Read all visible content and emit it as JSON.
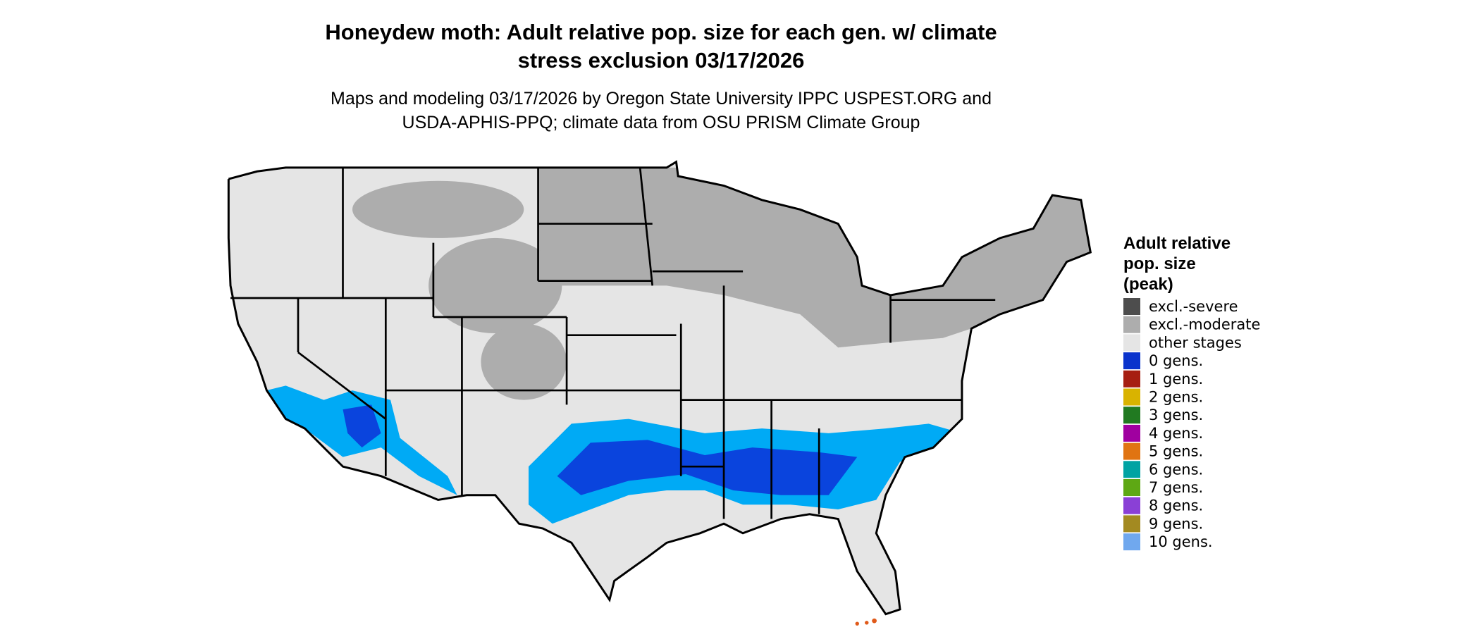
{
  "header": {
    "title_lines": [
      "Honeydew moth: Adult relative pop. size for each gen. w/ climate",
      "stress exclusion 03/17/2026"
    ],
    "subtitle_lines": [
      "Maps and modeling 03/17/2026 by Oregon State University IPPC USPEST.ORG and",
      "USDA-APHIS-PPQ; climate data from OSU PRISM Climate Group"
    ]
  },
  "legend": {
    "title_lines": [
      "Adult relative",
      "pop. size",
      "(peak)"
    ],
    "items": [
      {
        "label": "excl.-severe",
        "color": "#4d4d4d"
      },
      {
        "label": "excl.-moderate",
        "color": "#adadad"
      },
      {
        "label": "other stages",
        "color": "#e5e5e5"
      },
      {
        "label": "0 gens.",
        "color": "#0a33cc"
      },
      {
        "label": "1 gens.",
        "color": "#a61e12"
      },
      {
        "label": "2 gens.",
        "color": "#d9b300"
      },
      {
        "label": "3 gens.",
        "color": "#217a21"
      },
      {
        "label": "4 gens.",
        "color": "#a000a0"
      },
      {
        "label": "5 gens.",
        "color": "#e07412"
      },
      {
        "label": "6 gens.",
        "color": "#00a3a3"
      },
      {
        "label": "7 gens.",
        "color": "#5ea814"
      },
      {
        "label": "8 gens.",
        "color": "#8a40d6"
      },
      {
        "label": "9 gens.",
        "color": "#a38a21"
      },
      {
        "label": "10 gens.",
        "color": "#70a8ee"
      }
    ]
  }
}
